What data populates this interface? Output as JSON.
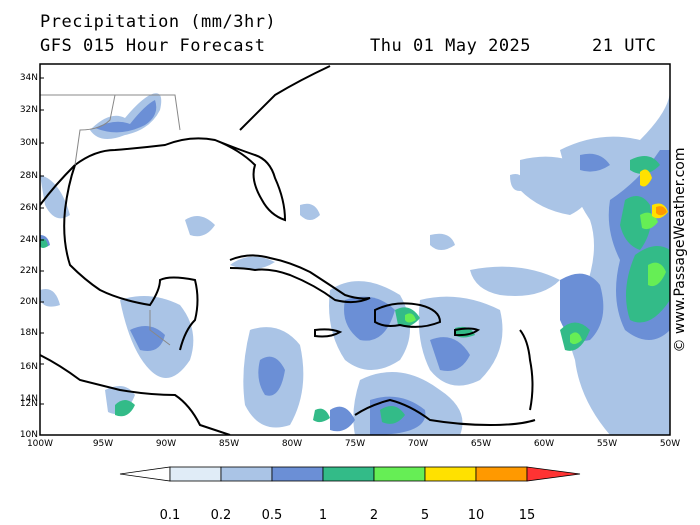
{
  "header": {
    "title": "Precipitation (mm/3hr)",
    "forecast": "GFS 015 Hour Forecast",
    "date": "Thu 01 May 2025",
    "time": "21 UTC"
  },
  "map": {
    "lat_labels": [
      "34N",
      "32N",
      "30N",
      "28N",
      "26N",
      "24N",
      "22N",
      "20N",
      "18N",
      "16N",
      "14N",
      "12N",
      "10N"
    ],
    "lon_labels": [
      "100W",
      "95W",
      "90W",
      "85W",
      "80W",
      "75W",
      "70W",
      "65W",
      "60W",
      "55W",
      "50W"
    ],
    "lat_range": [
      10,
      35
    ],
    "lon_range": [
      -100,
      -50
    ],
    "land_color": "#ffffff",
    "coast_color": "#000000"
  },
  "credit": "© www.PassageWeather.com",
  "legend": {
    "labels": [
      "0.1",
      "0.2",
      "0.5",
      "1",
      "2",
      "5",
      "10",
      "15"
    ],
    "colors": [
      "#ffffff",
      "#e0ecf7",
      "#aac4e6",
      "#6b8fd6",
      "#33bb88",
      "#66ee55",
      "#ffe100",
      "#ff9900",
      "#ff3333"
    ]
  }
}
